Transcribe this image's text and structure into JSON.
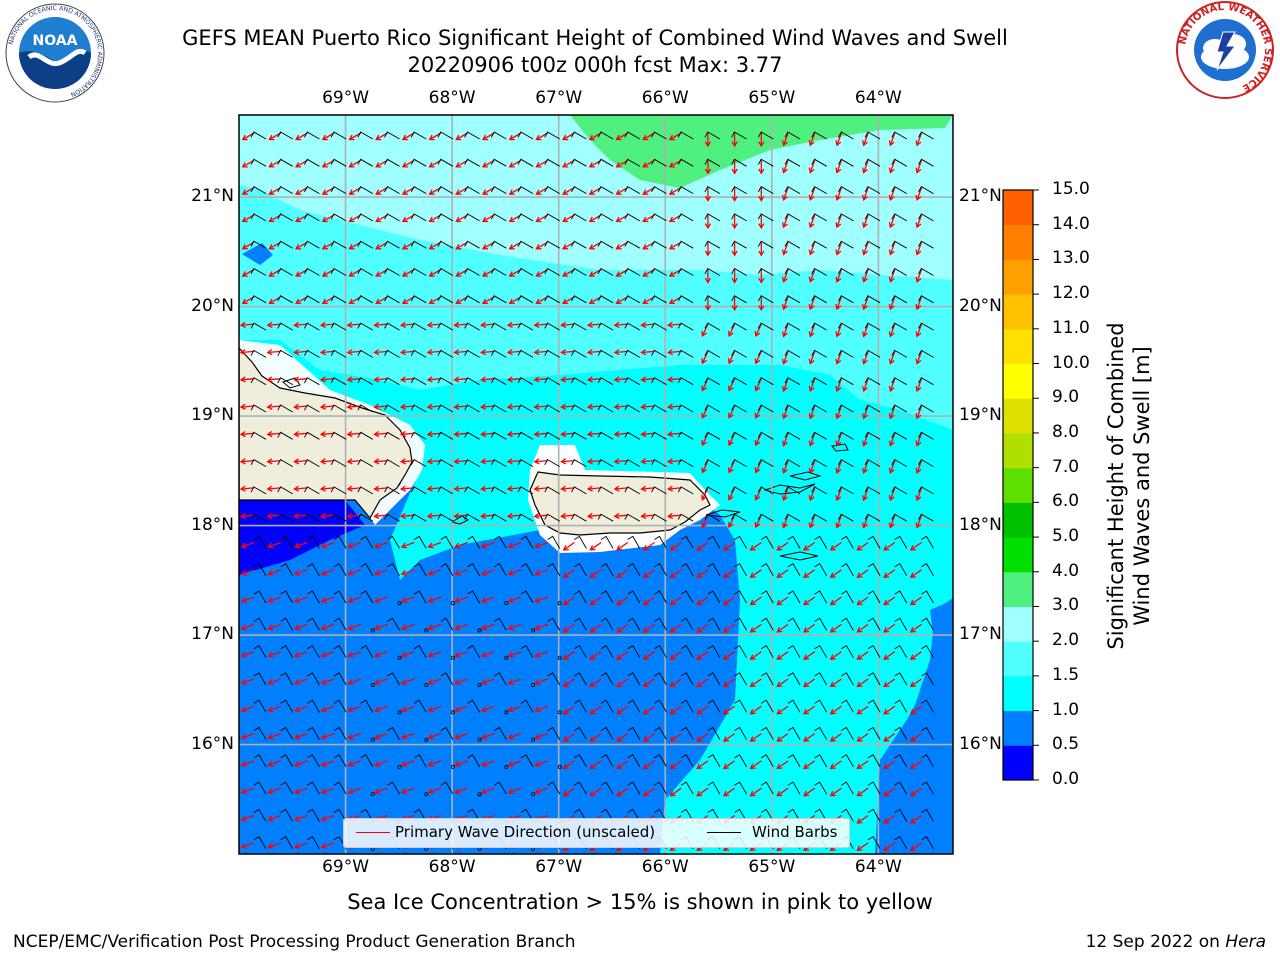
{
  "title": {
    "line1": "GEFS MEAN Puerto Rico Significant Height of Combined Wind Waves and Swell",
    "line2": "20220906 t00z 000h fcst   Max: 3.77"
  },
  "map": {
    "lon_labels": [
      "69°W",
      "68°W",
      "67°W",
      "66°W",
      "65°W",
      "64°W"
    ],
    "lat_labels": [
      "21°N",
      "20°N",
      "19°N",
      "18°N",
      "17°N",
      "16°N"
    ],
    "lon_values": [
      -69,
      -68,
      -67,
      -66,
      -65,
      -64
    ],
    "lat_values": [
      21,
      20,
      19,
      18,
      17,
      16
    ],
    "extent": {
      "lon": [
        -70,
        -63.3
      ],
      "lat": [
        15.0,
        21.75
      ]
    },
    "colors": {
      "land": "#efeedc",
      "ocean_0_5": "#0000ff",
      "ocean_1_0": "#0080ff",
      "ocean_1_5": "#00ffff",
      "ocean_2_0": "#50ffff",
      "ocean_2_5": "#a0ffff",
      "ocean_3_0": "#50f080",
      "wave_dir": "#ff0000",
      "wind_barb": "#000000"
    }
  },
  "colorbar": {
    "ticks": [
      "15.0",
      "14.0",
      "13.0",
      "12.0",
      "11.0",
      "10.0",
      "9.0",
      "8.0",
      "7.0",
      "6.0",
      "5.0",
      "4.0",
      "3.0",
      "2.0",
      "1.5",
      "1.0",
      "0.5",
      "0.0"
    ],
    "colors": [
      "#0000ff",
      "#0080ff",
      "#00ffff",
      "#50ffff",
      "#a0ffff",
      "#50f080",
      "#00e000",
      "#00c000",
      "#60e000",
      "#b0e000",
      "#e0e000",
      "#ffff00",
      "#ffe000",
      "#ffc000",
      "#ffa000",
      "#ff8000",
      "#ff6000",
      "#ff3000",
      "#ff0000"
    ],
    "label_line1": "Significant Height of Combined",
    "label_line2": "Wind Waves and Swell [m]"
  },
  "legend": {
    "wave_label": "Primary Wave Direction (unscaled)",
    "barb_label": "Wind Barbs"
  },
  "footnote": "Sea Ice Concentration > 15% is shown in pink to yellow",
  "credit": "NCEP/EMC/Verification Post Processing Product Generation Branch",
  "stamp": {
    "date": "12 Sep 2022 on",
    "machine": "Hera"
  },
  "logos": {
    "noaa_text": "NOAA",
    "noaa_ring": "NATIONAL OCEANIC AND ATMOSPHERIC ADMINISTRATION",
    "noaa_ring_bottom": "U.S. DEPARTMENT OF COMMERCE",
    "nws_ring": "NATIONAL WEATHER SERVICE"
  }
}
